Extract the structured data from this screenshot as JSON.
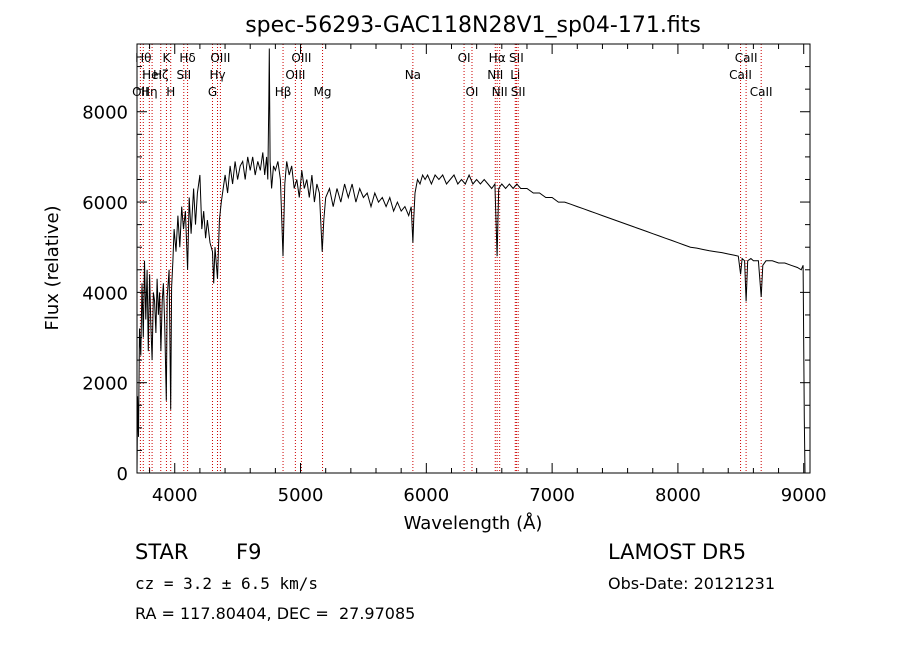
{
  "chart_data": {
    "type": "line",
    "title": "spec-56293-GAC118N28V1_sp04-171.fits",
    "xlabel": "Wavelength (Å)",
    "ylabel": "Flux (relative)",
    "xlim": [
      3700,
      9050
    ],
    "ylim": [
      0,
      9500
    ],
    "xticks": [
      "4000",
      "5000",
      "6000",
      "7000",
      "8000",
      "9000"
    ],
    "yticks": [
      "0",
      "2000",
      "4000",
      "6000",
      "8000"
    ],
    "grid": false,
    "series": [
      {
        "color": "#000000",
        "points": [
          [
            3700,
            0
          ],
          [
            3705,
            1700
          ],
          [
            3712,
            800
          ],
          [
            3720,
            3200
          ],
          [
            3730,
            2600
          ],
          [
            3740,
            4200
          ],
          [
            3750,
            3000
          ],
          [
            3760,
            4700
          ],
          [
            3770,
            3400
          ],
          [
            3780,
            4500
          ],
          [
            3790,
            2700
          ],
          [
            3800,
            4400
          ],
          [
            3810,
            3300
          ],
          [
            3820,
            2500
          ],
          [
            3830,
            4000
          ],
          [
            3840,
            3800
          ],
          [
            3850,
            3100
          ],
          [
            3860,
            4300
          ],
          [
            3870,
            3500
          ],
          [
            3880,
            4000
          ],
          [
            3890,
            2700
          ],
          [
            3900,
            3800
          ],
          [
            3910,
            4200
          ],
          [
            3920,
            3300
          ],
          [
            3933,
            1600
          ],
          [
            3940,
            3900
          ],
          [
            3955,
            4500
          ],
          [
            3968,
            1400
          ],
          [
            3975,
            4100
          ],
          [
            3985,
            4700
          ],
          [
            3995,
            5400
          ],
          [
            4010,
            4900
          ],
          [
            4025,
            5700
          ],
          [
            4040,
            5000
          ],
          [
            4055,
            5900
          ],
          [
            4070,
            5400
          ],
          [
            4085,
            5800
          ],
          [
            4102,
            4500
          ],
          [
            4115,
            6100
          ],
          [
            4130,
            5300
          ],
          [
            4150,
            6300
          ],
          [
            4165,
            5500
          ],
          [
            4180,
            6200
          ],
          [
            4200,
            6600
          ],
          [
            4215,
            5400
          ],
          [
            4230,
            5800
          ],
          [
            4245,
            5200
          ],
          [
            4260,
            5600
          ],
          [
            4280,
            5100
          ],
          [
            4300,
            4900
          ],
          [
            4310,
            4200
          ],
          [
            4320,
            5000
          ],
          [
            4340,
            4300
          ],
          [
            4355,
            5600
          ],
          [
            4370,
            6000
          ],
          [
            4385,
            6300
          ],
          [
            4400,
            6600
          ],
          [
            4420,
            6200
          ],
          [
            4440,
            6800
          ],
          [
            4460,
            6400
          ],
          [
            4480,
            6900
          ],
          [
            4500,
            6500
          ],
          [
            4520,
            6800
          ],
          [
            4540,
            6900
          ],
          [
            4560,
            6500
          ],
          [
            4580,
            7000
          ],
          [
            4600,
            6700
          ],
          [
            4620,
            7000
          ],
          [
            4640,
            6600
          ],
          [
            4660,
            6900
          ],
          [
            4680,
            6700
          ],
          [
            4700,
            7100
          ],
          [
            4715,
            6600
          ],
          [
            4730,
            7000
          ],
          [
            4740,
            6500
          ],
          [
            4748,
            8200
          ],
          [
            4752,
            9400
          ],
          [
            4758,
            6900
          ],
          [
            4770,
            6300
          ],
          [
            4785,
            6800
          ],
          [
            4800,
            6700
          ],
          [
            4820,
            6900
          ],
          [
            4840,
            6500
          ],
          [
            4861,
            4800
          ],
          [
            4875,
            6400
          ],
          [
            4890,
            6900
          ],
          [
            4910,
            6600
          ],
          [
            4930,
            6800
          ],
          [
            4950,
            6300
          ],
          [
            4970,
            6500
          ],
          [
            4990,
            6100
          ],
          [
            5010,
            6700
          ],
          [
            5030,
            6300
          ],
          [
            5050,
            6500
          ],
          [
            5070,
            6100
          ],
          [
            5090,
            6600
          ],
          [
            5110,
            6000
          ],
          [
            5130,
            6400
          ],
          [
            5150,
            6200
          ],
          [
            5172,
            4900
          ],
          [
            5185,
            5600
          ],
          [
            5200,
            6100
          ],
          [
            5230,
            6300
          ],
          [
            5260,
            5900
          ],
          [
            5290,
            6300
          ],
          [
            5320,
            6000
          ],
          [
            5350,
            6400
          ],
          [
            5380,
            6100
          ],
          [
            5410,
            6400
          ],
          [
            5440,
            6000
          ],
          [
            5470,
            6300
          ],
          [
            5500,
            6100
          ],
          [
            5530,
            6200
          ],
          [
            5560,
            5900
          ],
          [
            5590,
            6200
          ],
          [
            5620,
            6000
          ],
          [
            5650,
            6100
          ],
          [
            5680,
            5900
          ],
          [
            5710,
            6100
          ],
          [
            5740,
            5800
          ],
          [
            5770,
            6000
          ],
          [
            5800,
            5800
          ],
          [
            5830,
            5900
          ],
          [
            5860,
            5700
          ],
          [
            5880,
            5900
          ],
          [
            5893,
            5100
          ],
          [
            5900,
            5600
          ],
          [
            5910,
            6200
          ],
          [
            5930,
            6500
          ],
          [
            5950,
            6400
          ],
          [
            5970,
            6600
          ],
          [
            5990,
            6500
          ],
          [
            6010,
            6600
          ],
          [
            6040,
            6400
          ],
          [
            6070,
            6600
          ],
          [
            6100,
            6500
          ],
          [
            6130,
            6600
          ],
          [
            6160,
            6400
          ],
          [
            6190,
            6500
          ],
          [
            6220,
            6600
          ],
          [
            6250,
            6400
          ],
          [
            6280,
            6500
          ],
          [
            6310,
            6400
          ],
          [
            6340,
            6600
          ],
          [
            6370,
            6400
          ],
          [
            6400,
            6500
          ],
          [
            6430,
            6400
          ],
          [
            6460,
            6500
          ],
          [
            6490,
            6400
          ],
          [
            6520,
            6300
          ],
          [
            6545,
            6400
          ],
          [
            6563,
            4800
          ],
          [
            6575,
            6300
          ],
          [
            6600,
            6400
          ],
          [
            6630,
            6300
          ],
          [
            6660,
            6400
          ],
          [
            6690,
            6300
          ],
          [
            6720,
            6400
          ],
          [
            6750,
            6300
          ],
          [
            6800,
            6300
          ],
          [
            6850,
            6200
          ],
          [
            6900,
            6200
          ],
          [
            6950,
            6100
          ],
          [
            7000,
            6100
          ],
          [
            7050,
            6000
          ],
          [
            7100,
            6000
          ],
          [
            7150,
            5950
          ],
          [
            7200,
            5900
          ],
          [
            7250,
            5850
          ],
          [
            7300,
            5800
          ],
          [
            7350,
            5750
          ],
          [
            7400,
            5700
          ],
          [
            7450,
            5650
          ],
          [
            7500,
            5600
          ],
          [
            7550,
            5550
          ],
          [
            7600,
            5500
          ],
          [
            7650,
            5450
          ],
          [
            7700,
            5400
          ],
          [
            7750,
            5350
          ],
          [
            7800,
            5300
          ],
          [
            7850,
            5250
          ],
          [
            7900,
            5200
          ],
          [
            7950,
            5150
          ],
          [
            8000,
            5100
          ],
          [
            8050,
            5050
          ],
          [
            8100,
            5000
          ],
          [
            8150,
            4980
          ],
          [
            8200,
            4950
          ],
          [
            8250,
            4920
          ],
          [
            8300,
            4900
          ],
          [
            8350,
            4880
          ],
          [
            8400,
            4850
          ],
          [
            8450,
            4820
          ],
          [
            8480,
            4800
          ],
          [
            8498,
            4400
          ],
          [
            8510,
            4750
          ],
          [
            8530,
            4700
          ],
          [
            8542,
            3800
          ],
          [
            8555,
            4700
          ],
          [
            8580,
            4750
          ],
          [
            8600,
            4700
          ],
          [
            8640,
            4700
          ],
          [
            8662,
            3900
          ],
          [
            8675,
            4600
          ],
          [
            8700,
            4700
          ],
          [
            8750,
            4700
          ],
          [
            8800,
            4650
          ],
          [
            8850,
            4650
          ],
          [
            8900,
            4600
          ],
          [
            8950,
            4550
          ],
          [
            8980,
            4500
          ],
          [
            8995,
            4600
          ],
          [
            9005,
            1200
          ],
          [
            9010,
            0
          ]
        ]
      }
    ],
    "lines": [
      {
        "x": 3727,
        "labels": [
          "OII"
        ],
        "row": 2
      },
      {
        "x": 3750,
        "labels": [
          "Hθ"
        ],
        "row": 0
      },
      {
        "x": 3798,
        "labels": [
          "Hη"
        ],
        "row": 2
      },
      {
        "x": 3820,
        "labels": [
          "HeI"
        ],
        "row": 1
      },
      {
        "x": 3889,
        "labels": [
          "Hζ"
        ],
        "row": 1
      },
      {
        "x": 3934,
        "labels": [
          "K"
        ],
        "row": 0
      },
      {
        "x": 3968,
        "labels": [
          "H"
        ],
        "row": 2
      },
      {
        "x": 4072,
        "labels": [
          "SII"
        ],
        "row": 1
      },
      {
        "x": 4102,
        "labels": [
          "Hδ"
        ],
        "row": 0
      },
      {
        "x": 4300,
        "labels": [
          "G"
        ],
        "row": 2
      },
      {
        "x": 4340,
        "labels": [
          "Hγ"
        ],
        "row": 1
      },
      {
        "x": 4363,
        "labels": [
          "OIII"
        ],
        "row": 0
      },
      {
        "x": 4861,
        "labels": [
          "Hβ"
        ],
        "row": 2
      },
      {
        "x": 4959,
        "labels": [
          "OIII"
        ],
        "row": 1
      },
      {
        "x": 5007,
        "labels": [
          "OIII"
        ],
        "row": 0
      },
      {
        "x": 5175,
        "labels": [
          "Mg"
        ],
        "row": 2
      },
      {
        "x": 5893,
        "labels": [
          "Na"
        ],
        "row": 1
      },
      {
        "x": 6300,
        "labels": [
          "OI"
        ],
        "row": 0
      },
      {
        "x": 6363,
        "labels": [
          "OI"
        ],
        "row": 2
      },
      {
        "x": 6548,
        "labels": [
          "NII"
        ],
        "row": 1
      },
      {
        "x": 6563,
        "labels": [
          "Hα"
        ],
        "row": 0
      },
      {
        "x": 6583,
        "labels": [
          "NII"
        ],
        "row": 2
      },
      {
        "x": 6707,
        "labels": [
          "Li"
        ],
        "row": 1
      },
      {
        "x": 6716,
        "labels": [
          "SII"
        ],
        "row": 0
      },
      {
        "x": 6730,
        "labels": [
          "SII"
        ],
        "row": 2
      },
      {
        "x": 8498,
        "labels": [
          "CaII"
        ],
        "row": 1
      },
      {
        "x": 8542,
        "labels": [
          "CaII"
        ],
        "row": 0
      },
      {
        "x": 8662,
        "labels": [
          "CaII"
        ],
        "row": 2
      }
    ],
    "line_color": "#cc0000"
  },
  "info": {
    "object_class": "STAR",
    "subclass": "F9",
    "redshift": "cz = 3.2 ± 6.5 km/s",
    "coords": "RA = 117.80404, DEC =  27.97085",
    "survey": "LAMOST DR5",
    "obs_date": "Obs-Date: 20121231"
  }
}
